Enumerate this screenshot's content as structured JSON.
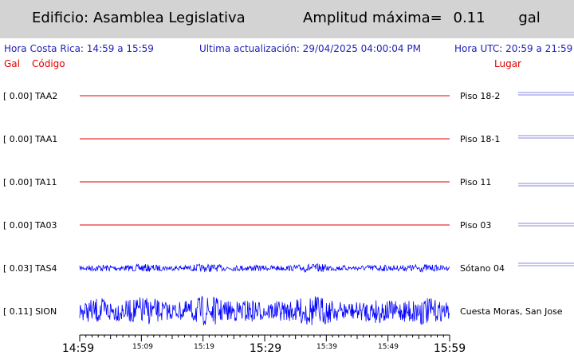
{
  "header": {
    "building_label": "Edificio: Asamblea Legislativa",
    "amplitude_label": "Amplitud máxima=",
    "amplitude_value": "0.11",
    "amplitude_unit": "gal"
  },
  "info": {
    "local_time": "Hora Costa Rica:   14:59 a 15:59",
    "last_update": "Ultima actualización:  29/04/2025 04:00:04 PM",
    "utc_time": "Hora UTC:   20:59 a 21:59"
  },
  "columns": {
    "gal": "Gal",
    "code": "Código",
    "place": "Lugar"
  },
  "stations": [
    {
      "label": "[   0.00] TAA2",
      "place": "Piso 18-2"
    },
    {
      "label": "[   0.00] TAA1",
      "place": "Piso 18-1"
    },
    {
      "label": "[   0.00] TA11",
      "place": "Piso 11"
    },
    {
      "label": "[   0.00] TA03",
      "place": "Piso 03"
    },
    {
      "label": "[   0.03] TAS4",
      "place": "Sótano 04"
    },
    {
      "label": "[   0.11] SION",
      "place": "Cuesta Moras, San Jose"
    }
  ],
  "time_axis": {
    "major": [
      "14:59",
      "15:29",
      "15:59"
    ],
    "minor": [
      "15:09",
      "15:19",
      "15:39",
      "15:49"
    ]
  },
  "colors": {
    "flat_trace": "#e00000",
    "active_trace": "#0000ff",
    "info_text": "#1f1fb4",
    "header_bg": "#d3d3d3"
  },
  "chart_data": {
    "type": "line",
    "x_range": [
      "14:59",
      "15:59"
    ],
    "series": [
      {
        "name": "TAA2",
        "peak_gal": 0.0
      },
      {
        "name": "TAA1",
        "peak_gal": 0.0
      },
      {
        "name": "TA11",
        "peak_gal": 0.0
      },
      {
        "name": "TA03",
        "peak_gal": 0.0
      },
      {
        "name": "TAS4",
        "peak_gal": 0.03
      },
      {
        "name": "SION",
        "peak_gal": 0.11
      }
    ]
  }
}
